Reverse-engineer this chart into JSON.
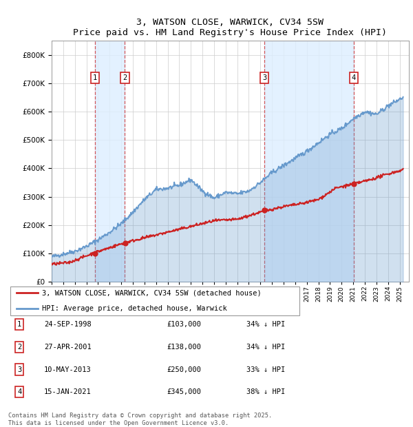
{
  "title": "3, WATSON CLOSE, WARWICK, CV34 5SW",
  "subtitle": "Price paid vs. HM Land Registry's House Price Index (HPI)",
  "background_color": "#ffffff",
  "plot_bg_color": "#ffffff",
  "grid_color": "#cccccc",
  "hpi_color": "#6699cc",
  "price_color": "#cc2222",
  "shade_color": "#ddeeff",
  "transactions": [
    {
      "num": 1,
      "date": "24-SEP-1998",
      "year": 1998.73,
      "price": 103000,
      "pct": "34% ↓ HPI"
    },
    {
      "num": 2,
      "date": "27-APR-2001",
      "year": 2001.32,
      "price": 138000,
      "pct": "34% ↓ HPI"
    },
    {
      "num": 3,
      "date": "10-MAY-2013",
      "year": 2013.36,
      "price": 250000,
      "pct": "33% ↓ HPI"
    },
    {
      "num": 4,
      "date": "15-JAN-2021",
      "year": 2021.04,
      "price": 345000,
      "pct": "38% ↓ HPI"
    }
  ],
  "legend_line1": "3, WATSON CLOSE, WARWICK, CV34 5SW (detached house)",
  "legend_line2": "HPI: Average price, detached house, Warwick",
  "footer": "Contains HM Land Registry data © Crown copyright and database right 2025.\nThis data is licensed under the Open Government Licence v3.0.",
  "ylim": [
    0,
    850000
  ],
  "xlim_start": 1995.0,
  "xlim_end": 2025.8,
  "yticks": [
    0,
    100000,
    200000,
    300000,
    400000,
    500000,
    600000,
    700000,
    800000
  ],
  "ytick_labels": [
    "£0",
    "£100K",
    "£200K",
    "£300K",
    "£400K",
    "£500K",
    "£600K",
    "£700K",
    "£800K"
  ],
  "hpi_years": [
    1995.0,
    1996.0,
    1997.0,
    1998.0,
    1999.0,
    2000.0,
    2001.0,
    2002.0,
    2003.0,
    2004.0,
    2005.0,
    2006.0,
    2007.0,
    2008.0,
    2009.0,
    2010.0,
    2011.0,
    2012.0,
    2013.0,
    2014.0,
    2015.0,
    2016.0,
    2017.0,
    2018.0,
    2019.0,
    2020.0,
    2021.0,
    2022.0,
    2023.0,
    2024.0,
    2025.3
  ],
  "hpi_prices": [
    88000,
    98000,
    108000,
    125000,
    148000,
    175000,
    205000,
    245000,
    290000,
    325000,
    330000,
    340000,
    360000,
    320000,
    295000,
    315000,
    310000,
    320000,
    350000,
    385000,
    410000,
    435000,
    460000,
    490000,
    520000,
    540000,
    575000,
    600000,
    590000,
    620000,
    650000
  ],
  "price_years": [
    1995.0,
    1996.5,
    1998.73,
    2001.32,
    2004.0,
    2007.0,
    2009.0,
    2011.0,
    2013.36,
    2015.0,
    2016.5,
    2018.0,
    2019.5,
    2021.04,
    2022.5,
    2024.0,
    2025.3
  ],
  "price_prices": [
    62000,
    68000,
    103000,
    138000,
    165000,
    195000,
    215000,
    220000,
    250000,
    265000,
    275000,
    290000,
    330000,
    345000,
    360000,
    380000,
    395000
  ]
}
